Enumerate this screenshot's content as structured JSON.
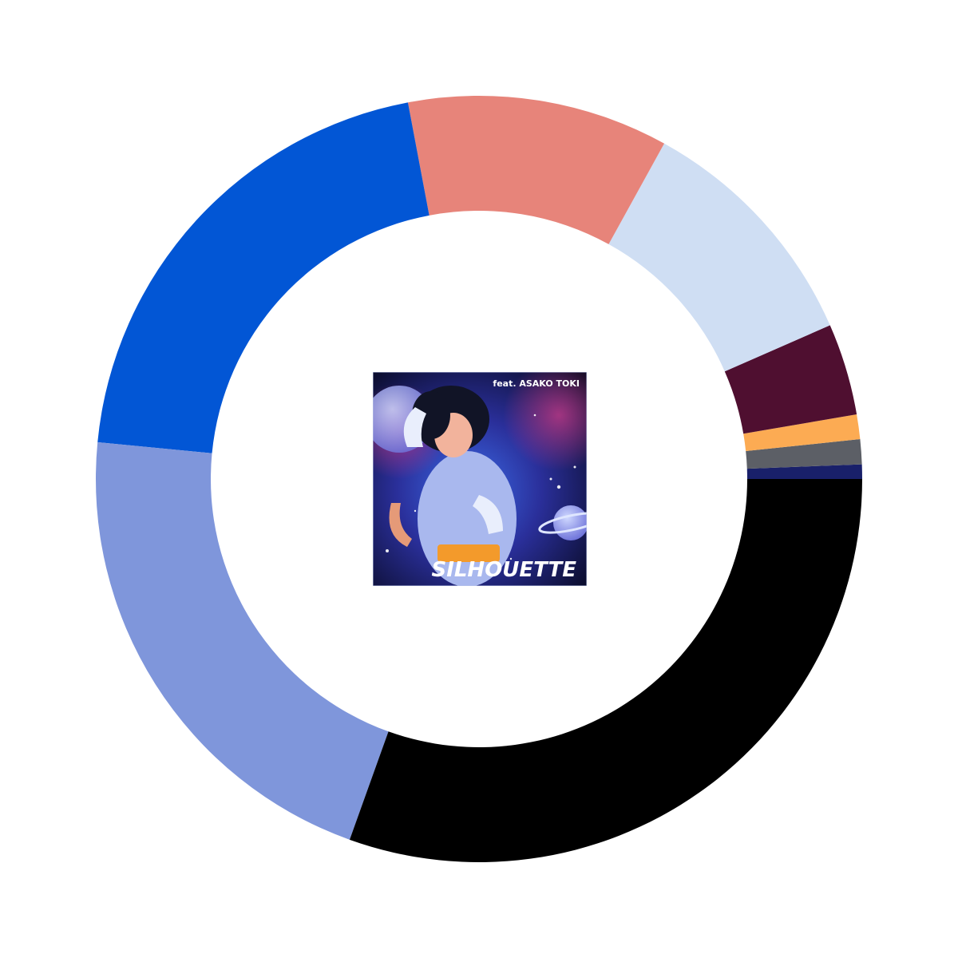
{
  "chart_data": {
    "type": "pie",
    "donut": true,
    "title": "",
    "start_angle_deg": 0,
    "direction": "counterclockwise",
    "slices": [
      {
        "value": 0.61,
        "color": "#19206a"
      },
      {
        "value": 1.05,
        "color": "#5c5f66"
      },
      {
        "value": 1.04,
        "color": "#fcab53"
      },
      {
        "value": 3.87,
        "color": "#4f0f30"
      },
      {
        "value": 10.4,
        "color": "#cfdef3"
      },
      {
        "value": 11.0,
        "color": "#e7847a"
      },
      {
        "value": 20.5,
        "color": "#0256d5"
      },
      {
        "value": 21.05,
        "color": "#7f96db"
      },
      {
        "value": 30.48,
        "color": "#000000"
      }
    ]
  },
  "center_cover": {
    "title": "SILHOUETTE",
    "subtitle": "feat. ASAKO TOKI"
  }
}
